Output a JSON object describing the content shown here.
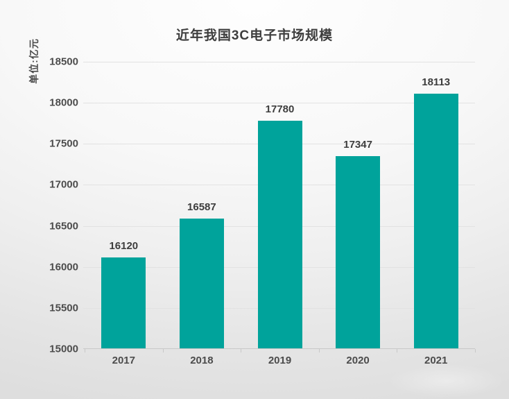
{
  "chart_data": {
    "type": "bar",
    "title": "近年我国3C电子市场规模",
    "ylabel": "单位:亿元",
    "categories": [
      "2017",
      "2018",
      "2019",
      "2020",
      "2021"
    ],
    "values": [
      16120,
      16587,
      17780,
      17347,
      18113
    ],
    "ylim": [
      15000,
      18500
    ],
    "yticks": [
      15000,
      15500,
      16000,
      16500,
      17000,
      17500,
      18000,
      18500
    ],
    "grid": true,
    "legend_position": "none",
    "bar_color": "#00a39b"
  },
  "colors": {
    "bar": "#00a39b",
    "title_text": "#3d3d3d",
    "value_label": "#3d3d3d",
    "tick_label": "#4c4c4c",
    "gridline": "#e2e2e2",
    "axis_line": "#c8c8c8"
  }
}
